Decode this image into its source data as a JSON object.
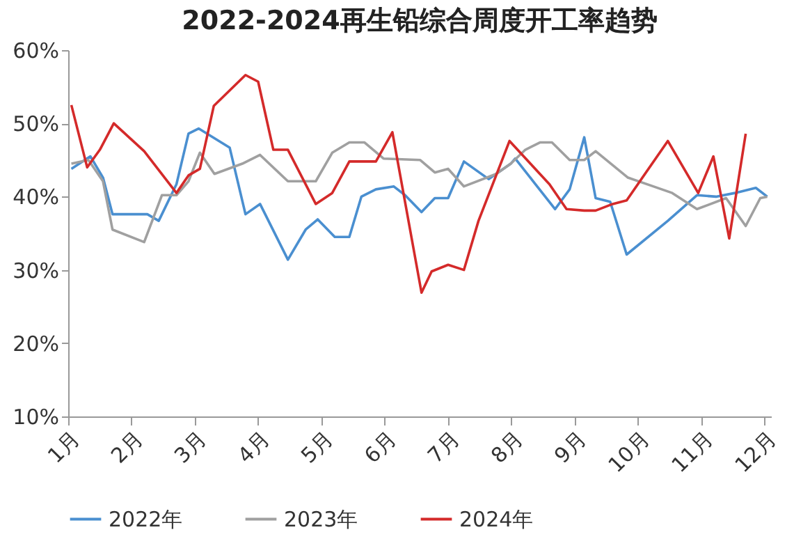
{
  "chart_data": {
    "type": "line",
    "title": "2022-2024再生铅综合周度开工率趋势",
    "xlim": [
      1,
      12.1
    ],
    "xticks": [
      {
        "value": 1,
        "label": "1月"
      },
      {
        "value": 2,
        "label": "2月"
      },
      {
        "value": 3,
        "label": "3月"
      },
      {
        "value": 4,
        "label": "4月"
      },
      {
        "value": 5,
        "label": "5月"
      },
      {
        "value": 6,
        "label": "6月"
      },
      {
        "value": 7,
        "label": "7月"
      },
      {
        "value": 8,
        "label": "8月"
      },
      {
        "value": 9,
        "label": "9月"
      },
      {
        "value": 10,
        "label": "10月"
      },
      {
        "value": 11,
        "label": "11月"
      },
      {
        "value": 12,
        "label": "12月"
      }
    ],
    "ylim": [
      10,
      60
    ],
    "yticks": [
      {
        "value": 10,
        "label": "10%"
      },
      {
        "value": 20,
        "label": "20%"
      },
      {
        "value": 30,
        "label": "30%"
      },
      {
        "value": 40,
        "label": "40%"
      },
      {
        "value": 50,
        "label": "50%"
      },
      {
        "value": 60,
        "label": "60%"
      }
    ],
    "grid": false,
    "legend": "bottom",
    "marker": "none",
    "line_style": "solid",
    "series": [
      {
        "name": "2022年",
        "color": "#4a8fd0",
        "x": [
          1.05,
          1.35,
          1.55,
          1.7,
          2.25,
          2.43,
          2.71,
          2.9,
          3.06,
          3.55,
          3.8,
          4.03,
          4.47,
          4.75,
          4.94,
          5.21,
          5.44,
          5.63,
          5.86,
          6.14,
          6.32,
          6.58,
          6.79,
          7.0,
          7.25,
          7.64,
          7.99,
          8.06,
          8.38,
          8.69,
          8.92,
          9.15,
          9.33,
          9.56,
          9.82,
          10.47,
          10.93,
          11.23,
          11.53,
          11.86,
          12.04
        ],
        "values": [
          43.8,
          45.5,
          42.6,
          37.6,
          37.6,
          36.7,
          41.7,
          48.6,
          49.3,
          46.7,
          37.6,
          39,
          31.4,
          35.5,
          36.9,
          34.5,
          34.5,
          40,
          41,
          41.4,
          40.2,
          37.9,
          39.8,
          39.8,
          44.8,
          42.4,
          44.5,
          45.2,
          41.7,
          38.3,
          41,
          48.1,
          39.8,
          39.3,
          32.1,
          36.7,
          40.2,
          40,
          40.5,
          41.2,
          40
        ]
      },
      {
        "name": "2023年",
        "color": "#a0a0a0",
        "x": [
          1.05,
          1.32,
          1.55,
          1.7,
          2.2,
          2.48,
          2.71,
          2.9,
          3.08,
          3.31,
          3.75,
          4.03,
          4.47,
          4.91,
          5.17,
          5.44,
          5.68,
          5.98,
          6.56,
          6.79,
          7.0,
          7.25,
          7.76,
          7.99,
          8.22,
          8.45,
          8.64,
          8.92,
          9.15,
          9.33,
          9.84,
          10.24,
          10.54,
          10.93,
          11.39,
          11.7,
          11.93,
          12.04
        ],
        "values": [
          44.5,
          45,
          42.1,
          35.5,
          33.8,
          40.2,
          40.2,
          42.1,
          46,
          43.1,
          44.5,
          45.7,
          42.1,
          42.1,
          46,
          47.4,
          47.4,
          45.2,
          45,
          43.3,
          43.8,
          41.4,
          43.1,
          44.5,
          46.4,
          47.4,
          47.4,
          45,
          45,
          46.2,
          42.6,
          41.4,
          40.5,
          38.3,
          39.8,
          36,
          39.8,
          40
        ]
      },
      {
        "name": "2024年",
        "color": "#d42a2a",
        "x": [
          1.05,
          1.3,
          1.5,
          1.72,
          2.2,
          2.71,
          2.9,
          3.08,
          3.3,
          3.8,
          4.0,
          4.24,
          4.47,
          4.91,
          5.17,
          5.44,
          5.86,
          6.12,
          6.58,
          6.74,
          7.0,
          7.25,
          7.48,
          7.97,
          8.3,
          8.6,
          8.87,
          9.15,
          9.33,
          9.6,
          9.82,
          10.47,
          10.95,
          11.19,
          11.44,
          11.7
        ],
        "values": [
          52.5,
          44,
          46.4,
          50,
          46.2,
          40.5,
          42.9,
          43.8,
          52.4,
          56.6,
          55.7,
          46.4,
          46.4,
          39,
          40.5,
          44.8,
          44.8,
          48.8,
          26.9,
          29.8,
          30.7,
          30,
          36.7,
          47.6,
          44.5,
          41.7,
          38.3,
          38.1,
          38.1,
          39,
          39.5,
          47.6,
          40.5,
          45.5,
          34.3,
          48.6
        ]
      }
    ]
  }
}
